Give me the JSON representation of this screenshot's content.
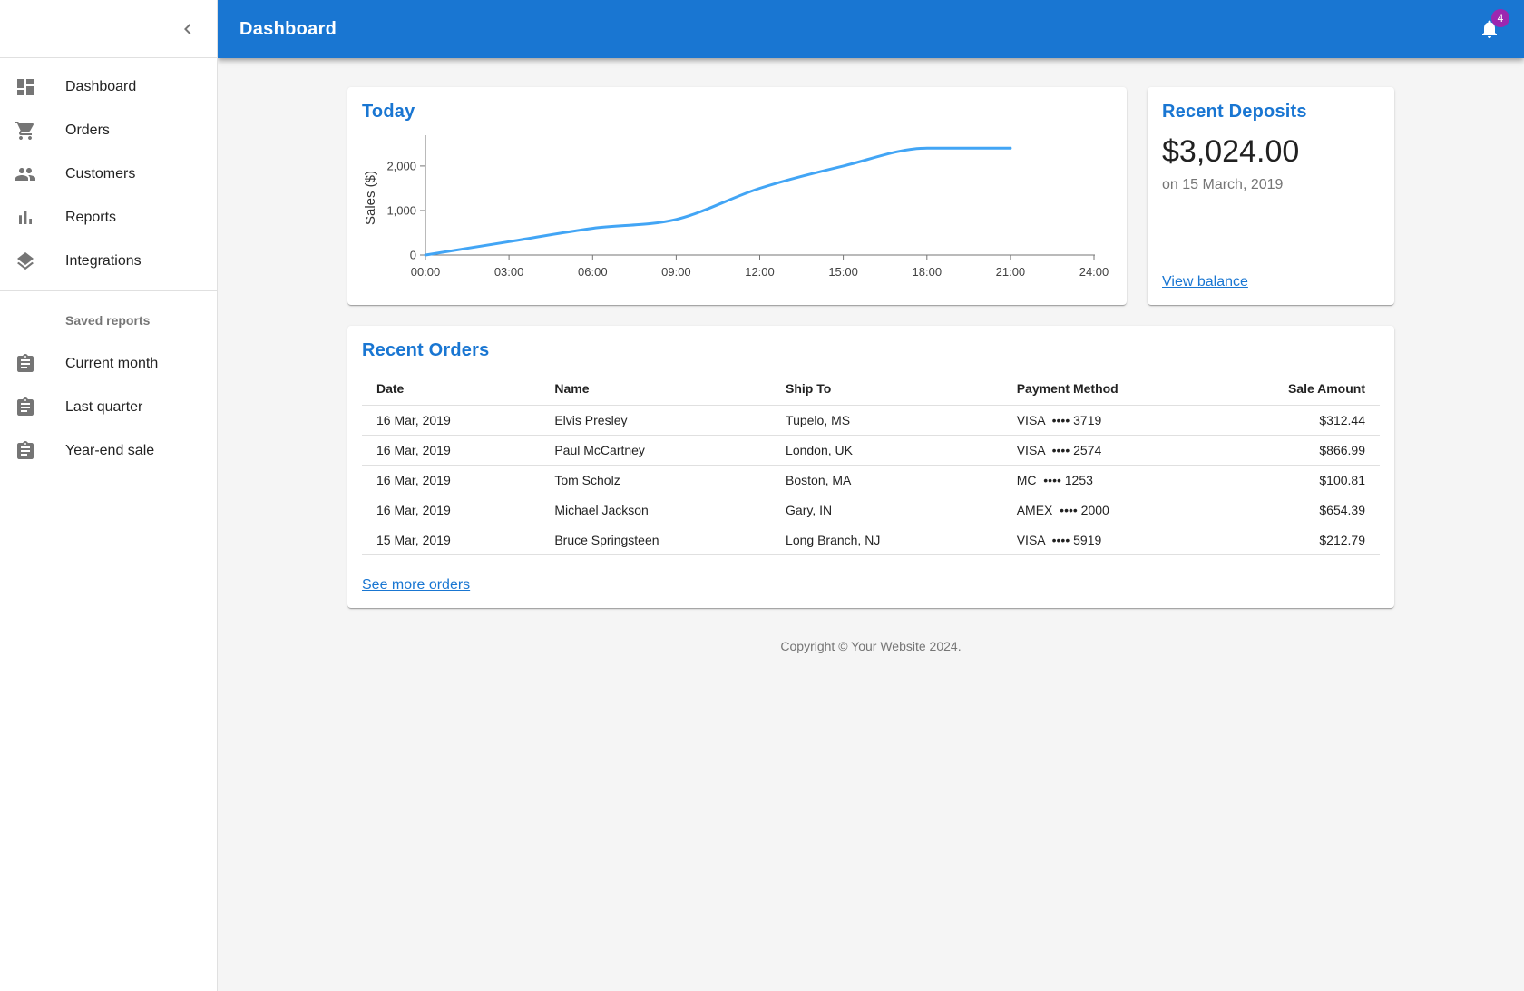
{
  "appbar": {
    "title": "Dashboard",
    "badge_count": "4"
  },
  "sidebar": {
    "items": [
      {
        "label": "Dashboard",
        "icon": "dashboard-icon"
      },
      {
        "label": "Orders",
        "icon": "shopping-cart-icon"
      },
      {
        "label": "Customers",
        "icon": "people-icon"
      },
      {
        "label": "Reports",
        "icon": "bar-chart-icon"
      },
      {
        "label": "Integrations",
        "icon": "layers-icon"
      }
    ],
    "subheader": "Saved reports",
    "saved_reports": [
      {
        "label": "Current month",
        "icon": "assignment-icon"
      },
      {
        "label": "Last quarter",
        "icon": "assignment-icon"
      },
      {
        "label": "Year-end sale",
        "icon": "assignment-icon"
      }
    ]
  },
  "chart_data": {
    "type": "line",
    "title": "Today",
    "xlabel": "",
    "ylabel": "Sales ($)",
    "categories": [
      "00:00",
      "03:00",
      "06:00",
      "09:00",
      "12:00",
      "15:00",
      "18:00",
      "21:00",
      "24:00"
    ],
    "x_hours": [
      0,
      3,
      6,
      9,
      12,
      15,
      18,
      21,
      24
    ],
    "values": [
      0,
      300,
      600,
      800,
      1500,
      2000,
      2400,
      2400,
      null
    ],
    "y_ticks": [
      0,
      1000,
      2000
    ],
    "y_tick_labels": [
      "0",
      "1,000",
      "2,000"
    ],
    "ylim": [
      0,
      2570
    ],
    "xlim_hours": [
      0,
      24
    ],
    "grid": false,
    "legend": "none",
    "line_color": "#42a5f5",
    "axis_color": "#757575"
  },
  "deposits_card": {
    "title": "Recent Deposits",
    "amount": "$3,024.00",
    "date": "on 15 March, 2019",
    "link_label": "View balance"
  },
  "orders_card": {
    "title": "Recent Orders",
    "columns": [
      "Date",
      "Name",
      "Ship To",
      "Payment Method",
      "Sale Amount"
    ],
    "rows": [
      [
        "16 Mar, 2019",
        "Elvis Presley",
        "Tupelo, MS",
        "VISA  •••• 3719",
        "$312.44"
      ],
      [
        "16 Mar, 2019",
        "Paul McCartney",
        "London, UK",
        "VISA  •••• 2574",
        "$866.99"
      ],
      [
        "16 Mar, 2019",
        "Tom Scholz",
        "Boston, MA",
        "MC  •••• 1253",
        "$100.81"
      ],
      [
        "16 Mar, 2019",
        "Michael Jackson",
        "Gary, IN",
        "AMEX  •••• 2000",
        "$654.39"
      ],
      [
        "15 Mar, 2019",
        "Bruce Springsteen",
        "Long Branch, NJ",
        "VISA  •••• 5919",
        "$212.79"
      ]
    ],
    "link_label": "See more orders"
  },
  "footer": {
    "text_prefix": "Copyright © ",
    "link_label": "Your Website",
    "text_suffix": " 2024."
  },
  "colors": {
    "primary": "#1976d2",
    "badge": "#9c27b0",
    "chart_line": "#42a5f5",
    "content_background": "#f5f5f5",
    "sidebar_icon": "#757575"
  }
}
